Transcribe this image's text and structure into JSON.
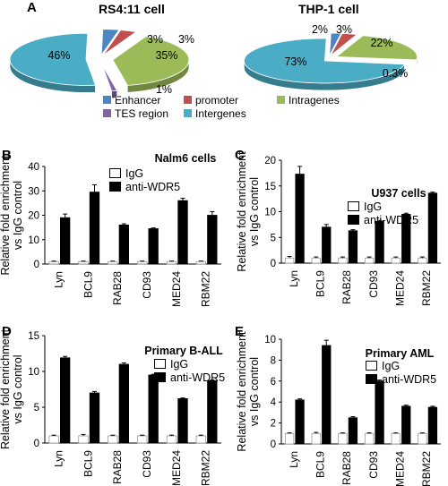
{
  "panel_letters": {
    "a": "A",
    "b": "B",
    "c": "C",
    "d": "D",
    "e": "E"
  },
  "pie_legend": [
    {
      "label": "Enhancer",
      "color": "#4a86c5"
    },
    {
      "label": "promoter",
      "color": "#c0504d"
    },
    {
      "label": "Intragenes",
      "color": "#9bbb59"
    },
    {
      "label": "TES region",
      "color": "#8064a2"
    },
    {
      "label": "Intergenes",
      "color": "#4bacc6"
    }
  ],
  "bar_legend": {
    "igg": "IgG",
    "wdr5": "anti-WDR5"
  },
  "ylabel_line1": "Relative fold enrichment",
  "ylabel_line2": "vs IgG control",
  "chart_data": [
    {
      "id": "rs411",
      "type": "pie",
      "title": "RS4:11 cell",
      "slices": [
        {
          "name": "Enhancer",
          "value": 3,
          "label": "3%",
          "color": "#4a86c5"
        },
        {
          "name": "promoter",
          "value": 3,
          "label": "3%",
          "color": "#c0504d"
        },
        {
          "name": "Intragenes",
          "value": 35,
          "label": "35%",
          "color": "#9bbb59"
        },
        {
          "name": "TES region",
          "value": 1,
          "label": "1%",
          "color": "#8064a2"
        },
        {
          "name": "Intergenes",
          "value": 46,
          "label": "46%",
          "color": "#4bacc6"
        }
      ]
    },
    {
      "id": "thp1",
      "type": "pie",
      "title": "THP-1 cell",
      "slices": [
        {
          "name": "Enhancer",
          "value": 2,
          "label": "2%",
          "color": "#4a86c5"
        },
        {
          "name": "promoter",
          "value": 3,
          "label": "3%",
          "color": "#c0504d"
        },
        {
          "name": "Intragenes",
          "value": 22,
          "label": "22%",
          "color": "#9bbb59"
        },
        {
          "name": "TES region",
          "value": 0.3,
          "label": "0.3%",
          "color": "#8064a2"
        },
        {
          "name": "Intergenes",
          "value": 73,
          "label": "73%",
          "color": "#4bacc6"
        }
      ]
    },
    {
      "id": "nalm6",
      "type": "bar",
      "title": "Nalm6 cells",
      "categories": [
        "Lyn",
        "BCL9",
        "RAB28",
        "CD93",
        "MED24",
        "RBM22"
      ],
      "ylim": [
        0,
        40
      ],
      "yticks": [
        0,
        10,
        20,
        30,
        40
      ],
      "series": [
        {
          "name": "IgG",
          "values": [
            1,
            1,
            1,
            1,
            1,
            1
          ],
          "errors": [
            0.2,
            0.2,
            0.2,
            0.2,
            0.2,
            0.2
          ]
        },
        {
          "name": "anti-WDR5",
          "values": [
            19,
            29.5,
            16,
            14.5,
            26,
            20
          ],
          "errors": [
            1.5,
            3,
            0.5,
            0.3,
            1,
            1.5
          ]
        }
      ]
    },
    {
      "id": "u937",
      "type": "bar",
      "title": "U937 cells",
      "categories": [
        "Lyn",
        "BCL9",
        "RAB28",
        "CD93",
        "MED24",
        "RBM22"
      ],
      "ylim": [
        0,
        20
      ],
      "yticks": [
        0,
        5,
        10,
        15,
        20
      ],
      "series": [
        {
          "name": "IgG",
          "values": [
            1,
            1,
            1,
            1,
            1,
            1
          ],
          "errors": [
            0.3,
            0.2,
            0.2,
            0.2,
            0.2,
            0.2
          ]
        },
        {
          "name": "anti-WDR5",
          "values": [
            17.3,
            7,
            6.3,
            8.1,
            9.5,
            13.6
          ],
          "errors": [
            1.5,
            0.5,
            0.2,
            0.2,
            0.2,
            0.2
          ]
        }
      ]
    },
    {
      "id": "ball",
      "type": "bar",
      "title": "Primary B-ALL",
      "categories": [
        "Lyn",
        "BCL9",
        "RAB28",
        "CD93",
        "MED24",
        "RBM22"
      ],
      "ylim": [
        0,
        15
      ],
      "yticks": [
        0,
        5,
        10,
        15
      ],
      "series": [
        {
          "name": "IgG",
          "values": [
            1,
            1,
            1,
            1,
            1,
            1
          ],
          "errors": [
            0.1,
            0.2,
            0.1,
            0.1,
            0.1,
            0.1
          ]
        },
        {
          "name": "anti-WDR5",
          "values": [
            11.9,
            7,
            11,
            9.5,
            6.2,
            8.7
          ],
          "errors": [
            0.2,
            0.2,
            0.2,
            0.1,
            0.1,
            0.1
          ]
        }
      ]
    },
    {
      "id": "aml",
      "type": "bar",
      "title": "Primary AML",
      "categories": [
        "Lyn",
        "BCL9",
        "RAB28",
        "CD93",
        "MED24",
        "RBM22"
      ],
      "ylim": [
        0,
        10
      ],
      "yticks": [
        0,
        2,
        4,
        6,
        8,
        10
      ],
      "series": [
        {
          "name": "IgG",
          "values": [
            1,
            1,
            1,
            1,
            1,
            1
          ],
          "errors": [
            0.05,
            0.1,
            0.05,
            0.05,
            0.05,
            0.05
          ]
        },
        {
          "name": "anti-WDR5",
          "values": [
            4.2,
            9.4,
            2.5,
            6,
            3.6,
            3.5
          ],
          "errors": [
            0.1,
            0.5,
            0.1,
            0.1,
            0.1,
            0.1
          ]
        }
      ]
    }
  ]
}
